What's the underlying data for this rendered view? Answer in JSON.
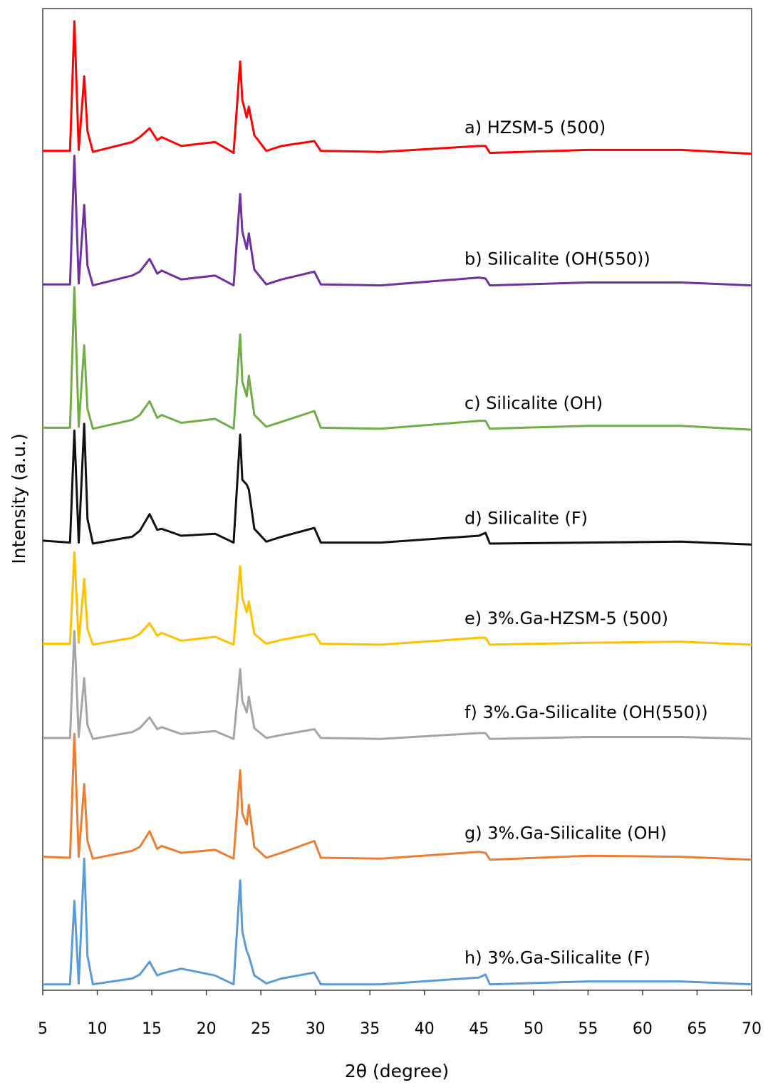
{
  "chart_data": {
    "type": "line",
    "xlabel": "2θ (degree)",
    "ylabel": "Intensity (a.u.)",
    "x": [
      5,
      7.5,
      7.9,
      8.3,
      8.8,
      9.1,
      9.6,
      13.2,
      13.9,
      14.8,
      15.5,
      15.9,
      17.7,
      20.8,
      22.5,
      23.1,
      23.3,
      23.7,
      23.9,
      24.4,
      25.5,
      26.9,
      29.9,
      30.5,
      36,
      45,
      45.6,
      46,
      55,
      63.5,
      70
    ],
    "xlim": [
      5,
      70
    ],
    "xticks": [
      5,
      10,
      15,
      20,
      25,
      30,
      35,
      40,
      45,
      50,
      55,
      60,
      65,
      70
    ],
    "ylim": [
      0,
      100
    ],
    "series": [
      {
        "name": "a) HZSM-5 (500)",
        "color": "#ff0000",
        "values": [
          85.5,
          85.5,
          98.7,
          85.6,
          93.1,
          87.5,
          85.4,
          86.4,
          86.9,
          87.8,
          86.6,
          86.9,
          86.0,
          86.4,
          85.3,
          94.6,
          90.7,
          88.9,
          90.0,
          87.1,
          85.5,
          86.0,
          86.5,
          85.5,
          85.4,
          86.0,
          86.0,
          85.3,
          85.6,
          85.6,
          85.2
        ]
      },
      {
        "name": "b) Silicalite (OH(550))",
        "color": "#7030a0",
        "values": [
          71.9,
          71.9,
          85.0,
          72.0,
          80.0,
          73.8,
          71.8,
          72.8,
          73.2,
          74.5,
          73.0,
          73.3,
          72.4,
          72.8,
          71.8,
          81.1,
          77.3,
          75.5,
          77.1,
          73.4,
          71.9,
          72.4,
          73.2,
          71.9,
          71.8,
          72.6,
          72.5,
          71.8,
          72.1,
          72.1,
          71.8
        ]
      },
      {
        "name": "c) Silicalite (OH)",
        "color": "#70ad47",
        "values": [
          57.3,
          57.3,
          71.6,
          57.4,
          65.7,
          59.2,
          57.2,
          58.1,
          58.6,
          60.0,
          58.3,
          58.6,
          57.8,
          58.2,
          57.2,
          66.8,
          62.0,
          60.5,
          62.6,
          58.6,
          57.4,
          57.9,
          59.0,
          57.3,
          57.2,
          58.0,
          58.0,
          57.2,
          57.5,
          57.5,
          57.1
        ]
      },
      {
        "name": "d) Silicalite (F)",
        "color": "#111111",
        "values": [
          45.8,
          45.6,
          57.0,
          45.6,
          57.7,
          48.0,
          45.5,
          46.2,
          46.8,
          48.5,
          46.9,
          47.0,
          46.3,
          46.5,
          45.6,
          56.6,
          52.0,
          51.5,
          51.0,
          47.0,
          45.7,
          46.2,
          47.1,
          45.6,
          45.6,
          46.3,
          46.6,
          45.5,
          45.6,
          45.7,
          45.4
        ]
      },
      {
        "name": "e) 3%.Ga-HZSM-5 (500)",
        "color": "#ffc000",
        "values": [
          35.3,
          35.3,
          44.6,
          35.4,
          41.9,
          36.8,
          35.2,
          35.9,
          36.3,
          37.4,
          36.1,
          36.4,
          35.6,
          36.0,
          35.2,
          43.2,
          40.0,
          38.5,
          39.6,
          36.3,
          35.3,
          35.7,
          36.3,
          35.3,
          35.2,
          35.9,
          35.9,
          35.2,
          35.4,
          35.5,
          35.2
        ]
      },
      {
        "name": "f) 3%.Ga-Silicalite (OH(550))",
        "color": "#a5a5a5",
        "values": [
          25.7,
          25.7,
          36.6,
          25.8,
          31.8,
          27.0,
          25.6,
          26.3,
          26.7,
          27.8,
          26.6,
          26.8,
          26.1,
          26.4,
          25.6,
          32.7,
          29.5,
          28.3,
          29.9,
          26.7,
          25.7,
          26.0,
          26.6,
          25.7,
          25.6,
          26.2,
          26.2,
          25.6,
          25.8,
          25.8,
          25.6
        ]
      },
      {
        "name": "g) 3%.Ga-Silicalite (OH)",
        "color": "#ed7d31",
        "values": [
          13.6,
          13.5,
          26.1,
          13.6,
          21.0,
          15.2,
          13.4,
          14.2,
          14.6,
          16.2,
          14.4,
          14.7,
          14.0,
          14.3,
          13.4,
          22.4,
          18.0,
          16.9,
          18.9,
          14.6,
          13.5,
          14.0,
          15.2,
          13.5,
          13.4,
          14.1,
          14.0,
          13.3,
          13.7,
          13.6,
          13.3
        ]
      },
      {
        "name": "h) 3%.Ga-Silicalite (F)",
        "color": "#5b9bd5",
        "values": [
          0.6,
          0.6,
          9.1,
          0.7,
          13.4,
          3.5,
          0.6,
          1.2,
          1.6,
          2.9,
          1.5,
          1.7,
          2.2,
          1.5,
          0.6,
          11.2,
          6.0,
          4.0,
          3.5,
          1.5,
          0.7,
          1.2,
          1.8,
          0.6,
          0.6,
          1.3,
          1.6,
          0.6,
          0.9,
          0.9,
          0.6
        ]
      }
    ]
  }
}
